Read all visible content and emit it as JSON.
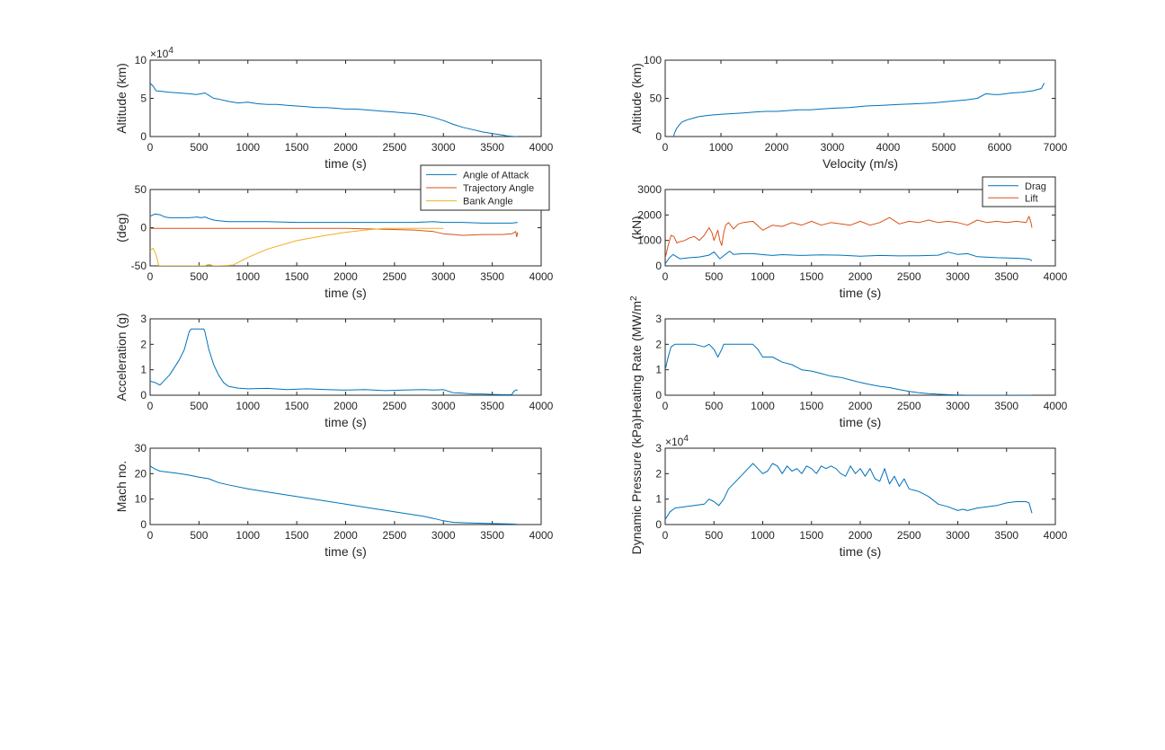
{
  "chart_data": [
    {
      "type": "line",
      "xlabel": "time (s)",
      "ylabel": "Altitude (km)",
      "exponent": "4",
      "xlim": [
        0,
        4000
      ],
      "ylim": [
        0,
        10
      ],
      "xticks": [
        0,
        500,
        1000,
        1500,
        2000,
        2500,
        3000,
        3500,
        4000
      ],
      "yticks": [
        0,
        5,
        10
      ],
      "series": [
        {
          "color": "#0072bd",
          "x": [
            0,
            30,
            60,
            120,
            200,
            300,
            400,
            470,
            520,
            560,
            600,
            650,
            700,
            800,
            900,
            1000,
            1100,
            1200,
            1300,
            1400,
            1500,
            1600,
            1700,
            1800,
            1900,
            2000,
            2100,
            2200,
            2300,
            2400,
            2500,
            2600,
            2700,
            2800,
            2900,
            3000,
            3100,
            3200,
            3300,
            3400,
            3500,
            3600,
            3650,
            3700,
            3730,
            3760
          ],
          "y": [
            7.0,
            6.6,
            6.0,
            5.9,
            5.8,
            5.7,
            5.6,
            5.5,
            5.6,
            5.7,
            5.4,
            5.0,
            4.9,
            4.6,
            4.4,
            4.5,
            4.3,
            4.2,
            4.2,
            4.1,
            4.0,
            3.9,
            3.8,
            3.8,
            3.7,
            3.6,
            3.6,
            3.5,
            3.4,
            3.3,
            3.2,
            3.1,
            3.0,
            2.8,
            2.5,
            2.1,
            1.6,
            1.2,
            0.9,
            0.6,
            0.4,
            0.2,
            0.1,
            0.03,
            0.0,
            0.0
          ]
        }
      ]
    },
    {
      "type": "line",
      "xlabel": "Velocity (m/s)",
      "ylabel": "Altitude (km)",
      "xlim": [
        0,
        7000
      ],
      "ylim": [
        0,
        100
      ],
      "xticks": [
        0,
        1000,
        2000,
        3000,
        4000,
        5000,
        6000,
        7000
      ],
      "yticks": [
        0,
        50,
        100
      ],
      "series": [
        {
          "color": "#0072bd",
          "x": [
            150,
            170,
            200,
            250,
            300,
            400,
            500,
            600,
            800,
            1000,
            1200,
            1400,
            1600,
            1800,
            2000,
            2200,
            2400,
            2600,
            2800,
            3000,
            3300,
            3600,
            3900,
            4200,
            4500,
            4800,
            5100,
            5400,
            5600,
            5750,
            5900,
            6000,
            6200,
            6400,
            6600,
            6750,
            6800
          ],
          "y": [
            0,
            5,
            10,
            15,
            19,
            22,
            24,
            26,
            28,
            29,
            30,
            31,
            32,
            33,
            33,
            34,
            35,
            35,
            36,
            37,
            38,
            40,
            41,
            42,
            43,
            44,
            46,
            48,
            50,
            56,
            55,
            55,
            57,
            58,
            60,
            63,
            70
          ]
        }
      ]
    },
    {
      "type": "line",
      "xlabel": "time (s)",
      "ylabel": "(deg)",
      "xlim": [
        0,
        4000
      ],
      "ylim": [
        -50,
        50
      ],
      "xticks": [
        0,
        500,
        1000,
        1500,
        2000,
        2500,
        3000,
        3500,
        4000
      ],
      "yticks": [
        -50,
        0,
        50
      ],
      "legend": "top-right",
      "series": [
        {
          "name": "Angle of Attack",
          "color": "#0072bd",
          "x": [
            0,
            50,
            100,
            150,
            200,
            300,
            400,
            480,
            520,
            560,
            600,
            650,
            700,
            800,
            1000,
            1200,
            1500,
            1800,
            2000,
            2200,
            2500,
            2700,
            2900,
            3000,
            3200,
            3400,
            3600,
            3700,
            3760
          ],
          "y": [
            15,
            18,
            17,
            14,
            13,
            13,
            13,
            14,
            13,
            14,
            12,
            10,
            9,
            8,
            8,
            8,
            7,
            7,
            7,
            7,
            7,
            7,
            8,
            7,
            7,
            6,
            6,
            6,
            7
          ]
        },
        {
          "name": "Trajectory Angle",
          "color": "#d95319",
          "x": [
            0,
            500,
            1000,
            1500,
            2000,
            2400,
            2700,
            2900,
            3000,
            3200,
            3400,
            3600,
            3700,
            3740,
            3750,
            3760
          ],
          "y": [
            -1,
            -1,
            -1,
            -1,
            -1,
            -2,
            -3,
            -5,
            -8,
            -10,
            -9,
            -9,
            -8,
            -5,
            -12,
            -6
          ]
        },
        {
          "name": "Bank Angle",
          "color": "#edb120",
          "x": [
            0,
            30,
            60,
            80,
            90,
            100,
            300,
            560,
            600,
            650,
            700,
            850,
            1000,
            1200,
            1500,
            1800,
            2000,
            2200,
            2400,
            2500,
            3000
          ],
          "y": [
            -30,
            -27,
            -35,
            -45,
            -50,
            -50,
            -50,
            -50,
            -48,
            -50,
            -50,
            -49,
            -39,
            -28,
            -17,
            -10,
            -6,
            -3,
            -1,
            -1,
            -1
          ]
        }
      ]
    },
    {
      "type": "line",
      "xlabel": "time (s)",
      "ylabel": "(kN)",
      "xlim": [
        0,
        4000
      ],
      "ylim": [
        0,
        3000
      ],
      "xticks": [
        0,
        500,
        1000,
        1500,
        2000,
        2500,
        3000,
        3500,
        4000
      ],
      "yticks": [
        0,
        1000,
        2000,
        3000
      ],
      "legend": "top-right",
      "series": [
        {
          "name": "Drag",
          "color": "#0072bd",
          "x": [
            0,
            40,
            80,
            150,
            250,
            350,
            450,
            500,
            560,
            620,
            660,
            700,
            800,
            900,
            1000,
            1100,
            1200,
            1400,
            1600,
            1800,
            2000,
            2200,
            2400,
            2600,
            2800,
            2900,
            3000,
            3100,
            3200,
            3400,
            3600,
            3700,
            3740,
            3760
          ],
          "y": [
            80,
            300,
            450,
            280,
            320,
            350,
            420,
            550,
            280,
            460,
            580,
            450,
            480,
            480,
            440,
            410,
            440,
            410,
            430,
            420,
            380,
            410,
            390,
            400,
            420,
            540,
            450,
            480,
            360,
            320,
            300,
            280,
            250,
            200
          ]
        },
        {
          "name": "Lift",
          "color": "#d95319",
          "x": [
            0,
            30,
            60,
            90,
            120,
            150,
            200,
            250,
            300,
            350,
            400,
            450,
            480,
            500,
            520,
            540,
            560,
            580,
            600,
            620,
            650,
            700,
            750,
            800,
            900,
            1000,
            1100,
            1200,
            1300,
            1400,
            1500,
            1600,
            1700,
            1800,
            1900,
            2000,
            2100,
            2200,
            2300,
            2400,
            2500,
            2600,
            2700,
            2800,
            2900,
            3000,
            3100,
            3200,
            3300,
            3400,
            3500,
            3600,
            3700,
            3730,
            3750,
            3760
          ],
          "y": [
            300,
            800,
            1200,
            1150,
            900,
            950,
            1000,
            1100,
            1150,
            1000,
            1200,
            1500,
            1300,
            1000,
            1200,
            1400,
            1000,
            800,
            1300,
            1600,
            1700,
            1450,
            1650,
            1700,
            1750,
            1400,
            1600,
            1550,
            1700,
            1600,
            1750,
            1600,
            1700,
            1650,
            1600,
            1750,
            1600,
            1700,
            1900,
            1650,
            1750,
            1700,
            1800,
            1700,
            1750,
            1700,
            1600,
            1800,
            1700,
            1750,
            1700,
            1750,
            1700,
            1950,
            1700,
            1500
          ]
        }
      ]
    },
    {
      "type": "line",
      "xlabel": "time (s)",
      "ylabel": "Acceleration (g)",
      "xlim": [
        0,
        4000
      ],
      "ylim": [
        0,
        3
      ],
      "xticks": [
        0,
        500,
        1000,
        1500,
        2000,
        2500,
        3000,
        3500,
        4000
      ],
      "yticks": [
        0,
        1,
        2,
        3
      ],
      "series": [
        {
          "color": "#0072bd",
          "x": [
            0,
            50,
            100,
            200,
            300,
            350,
            400,
            420,
            450,
            550,
            560,
            600,
            650,
            700,
            750,
            800,
            900,
            1000,
            1200,
            1400,
            1600,
            1800,
            2000,
            2200,
            2400,
            2600,
            2800,
            2900,
            3000,
            3100,
            3200,
            3300,
            3400,
            3500,
            3600,
            3700,
            3720,
            3740,
            3760
          ],
          "y": [
            0.55,
            0.5,
            0.4,
            0.8,
            1.4,
            1.8,
            2.5,
            2.6,
            2.6,
            2.6,
            2.5,
            1.8,
            1.2,
            0.8,
            0.5,
            0.35,
            0.28,
            0.25,
            0.27,
            0.22,
            0.25,
            0.22,
            0.2,
            0.22,
            0.18,
            0.2,
            0.22,
            0.2,
            0.22,
            0.1,
            0.08,
            0.05,
            0.05,
            0.03,
            0.02,
            0.02,
            0.15,
            0.2,
            0.2
          ]
        }
      ]
    },
    {
      "type": "line",
      "xlabel": "time (s)",
      "ylabel": "Heating Rate (MW/m",
      "ylabel_superscript": "2",
      "xlim": [
        0,
        4000
      ],
      "ylim": [
        0,
        3
      ],
      "xticks": [
        0,
        500,
        1000,
        1500,
        2000,
        2500,
        3000,
        3500,
        4000
      ],
      "yticks": [
        0,
        1,
        2,
        3
      ],
      "series": [
        {
          "color": "#0072bd",
          "x": [
            0,
            30,
            60,
            100,
            200,
            300,
            400,
            450,
            500,
            540,
            580,
            600,
            650,
            700,
            800,
            900,
            950,
            1000,
            1100,
            1200,
            1300,
            1400,
            1500,
            1600,
            1700,
            1800,
            1900,
            2000,
            2100,
            2200,
            2300,
            2400,
            2500,
            2600,
            2700,
            2800,
            2900,
            3000,
            3100,
            3200,
            3400,
            3600,
            3760
          ],
          "y": [
            1.0,
            1.5,
            1.9,
            2.0,
            2.0,
            2.0,
            1.9,
            2.0,
            1.8,
            1.5,
            1.8,
            2.0,
            2.0,
            2.0,
            2.0,
            2.0,
            1.8,
            1.5,
            1.5,
            1.3,
            1.2,
            1.0,
            0.95,
            0.85,
            0.75,
            0.7,
            0.6,
            0.5,
            0.42,
            0.35,
            0.3,
            0.22,
            0.15,
            0.1,
            0.06,
            0.04,
            0.02,
            0.01,
            0.0,
            0.0,
            0.0,
            0.0,
            0.0
          ]
        }
      ]
    },
    {
      "type": "line",
      "xlabel": "time (s)",
      "ylabel": "Mach no.",
      "xlim": [
        0,
        4000
      ],
      "ylim": [
        0,
        30
      ],
      "xticks": [
        0,
        500,
        1000,
        1500,
        2000,
        2500,
        3000,
        3500,
        4000
      ],
      "yticks": [
        0,
        10,
        20,
        30
      ],
      "series": [
        {
          "color": "#0072bd",
          "x": [
            0,
            50,
            100,
            200,
            300,
            400,
            500,
            600,
            700,
            800,
            1000,
            1200,
            1400,
            1600,
            1800,
            2000,
            2200,
            2400,
            2600,
            2800,
            2900,
            3000,
            3100,
            3200,
            3400,
            3600,
            3700,
            3760
          ],
          "y": [
            23,
            21.8,
            21,
            20.5,
            20,
            19.4,
            18.6,
            18,
            16.5,
            15.6,
            14,
            12.8,
            11.6,
            10.4,
            9.2,
            8.0,
            6.8,
            5.6,
            4.4,
            3.2,
            2.4,
            1.5,
            0.9,
            0.7,
            0.5,
            0.3,
            0.2,
            0.1
          ]
        }
      ]
    },
    {
      "type": "line",
      "xlabel": "time (s)",
      "ylabel": "Dynamic Pressure (kPa)",
      "exponent": "4",
      "xlim": [
        0,
        4000
      ],
      "ylim": [
        0,
        3
      ],
      "xticks": [
        0,
        500,
        1000,
        1500,
        2000,
        2500,
        3000,
        3500,
        4000
      ],
      "yticks": [
        0,
        1,
        2,
        3
      ],
      "series": [
        {
          "color": "#0072bd",
          "x": [
            0,
            50,
            100,
            200,
            300,
            400,
            450,
            500,
            550,
            600,
            650,
            700,
            800,
            900,
            950,
            1000,
            1050,
            1100,
            1150,
            1200,
            1250,
            1300,
            1350,
            1400,
            1450,
            1500,
            1550,
            1600,
            1650,
            1700,
            1750,
            1800,
            1850,
            1900,
            1950,
            2000,
            2050,
            2100,
            2150,
            2200,
            2250,
            2300,
            2350,
            2400,
            2450,
            2500,
            2600,
            2700,
            2800,
            2900,
            3000,
            3050,
            3100,
            3200,
            3300,
            3400,
            3500,
            3600,
            3700,
            3730,
            3760
          ],
          "y": [
            0.2,
            0.5,
            0.65,
            0.7,
            0.75,
            0.8,
            1.0,
            0.9,
            0.75,
            1.0,
            1.4,
            1.6,
            2.0,
            2.4,
            2.2,
            2.0,
            2.1,
            2.4,
            2.3,
            2.0,
            2.3,
            2.1,
            2.2,
            2.0,
            2.3,
            2.2,
            2.0,
            2.3,
            2.2,
            2.3,
            2.2,
            2.0,
            1.9,
            2.3,
            2.0,
            2.2,
            1.9,
            2.2,
            1.8,
            1.7,
            2.2,
            1.6,
            1.9,
            1.5,
            1.8,
            1.4,
            1.3,
            1.1,
            0.8,
            0.7,
            0.55,
            0.6,
            0.55,
            0.65,
            0.7,
            0.75,
            0.85,
            0.9,
            0.9,
            0.85,
            0.45
          ]
        }
      ]
    }
  ]
}
